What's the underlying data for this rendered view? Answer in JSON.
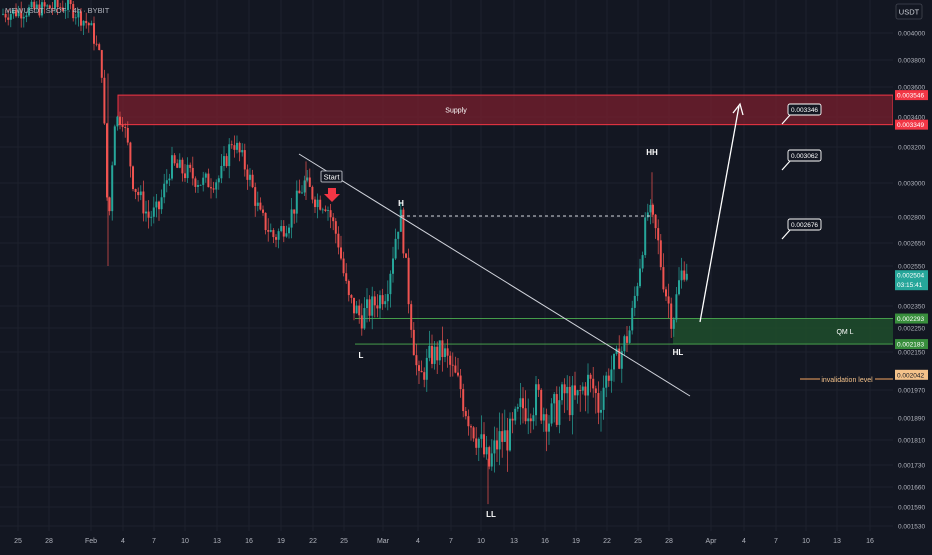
{
  "header": {
    "symbol_label": "MEWUSDT SPOT · 4h · BYBIT"
  },
  "currency_button": {
    "label": "USDT"
  },
  "colors": {
    "background": "#131722",
    "grid": "#1e222d",
    "axis_text": "#b2b5be",
    "up": "#26a69a",
    "down": "#ef5350",
    "supply_fill": "#7a1f2e",
    "supply_border": "#f23645",
    "qml_fill": "#1e4d2b",
    "qml_border": "#4caf50",
    "trendline": "#d1d4dc",
    "last_price_bg": "#26a69a",
    "invalidation_bg": "#f4c28a"
  },
  "chart_data": {
    "type": "candlestick",
    "x_axis": {
      "tick_labels": [
        "25",
        "28",
        "Feb",
        "4",
        "7",
        "10",
        "13",
        "16",
        "19",
        "22",
        "25",
        "Mar",
        "4",
        "7",
        "10",
        "13",
        "16",
        "19",
        "22",
        "25",
        "28",
        "Apr",
        "4",
        "7",
        "10",
        "13",
        "16"
      ]
    },
    "y_axis": {
      "range": [
        0.0015,
        0.00418
      ],
      "tick_labels": [
        "0.004000",
        "0.003800",
        "0.003600",
        "0.003400",
        "0.003200",
        "0.003000",
        "0.002800",
        "0.002650",
        "0.002550",
        "0.002350",
        "0.002250",
        "0.002150",
        "0.001970",
        "0.001890",
        "0.001810",
        "0.001730",
        "0.001660",
        "0.001590",
        "0.001530"
      ]
    },
    "price_labels": [
      {
        "name": "supply-top",
        "value": 0.003546,
        "label": "0.003546",
        "style": "supply"
      },
      {
        "name": "supply-bottom",
        "value": 0.003349,
        "label": "0.003349",
        "style": "supply"
      },
      {
        "name": "last-price",
        "value": 0.002504,
        "label": "0.002504",
        "sublabel": "03:15:41",
        "style": "last"
      },
      {
        "name": "qml-top",
        "value": 0.002293,
        "label": "0.002293",
        "style": "qml"
      },
      {
        "name": "qml-bottom",
        "value": 0.002183,
        "label": "0.002183",
        "style": "qml"
      },
      {
        "name": "invalidation",
        "value": 0.002042,
        "label": "0.002042",
        "style": "invalidation"
      }
    ],
    "zones": [
      {
        "name": "supply-zone",
        "label": "Supply",
        "top": 0.003546,
        "bottom": 0.003349,
        "style": "supply"
      },
      {
        "name": "qml-zone",
        "label": "QM L",
        "top": 0.002293,
        "bottom": 0.002183,
        "style": "qml"
      }
    ],
    "annotations": [
      {
        "name": "label-start",
        "text": "Start",
        "style": "boxed"
      },
      {
        "name": "label-h",
        "text": "H"
      },
      {
        "name": "label-l",
        "text": "L"
      },
      {
        "name": "label-ll",
        "text": "LL"
      },
      {
        "name": "label-hh",
        "text": "HH"
      },
      {
        "name": "label-hl",
        "text": "HL"
      },
      {
        "name": "label-invalidation",
        "text": "invalidation level",
        "style": "orange"
      }
    ],
    "targets": [
      {
        "name": "target-1",
        "text": "0.003346"
      },
      {
        "name": "target-2",
        "text": "0.003062"
      },
      {
        "name": "target-3",
        "text": "0.002676"
      }
    ]
  }
}
